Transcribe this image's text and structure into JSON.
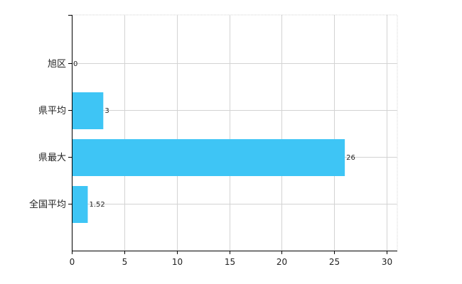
{
  "chart_data": {
    "type": "bar",
    "orientation": "horizontal",
    "categories": [
      "旭区",
      "県平均",
      "県最大",
      "全国平均"
    ],
    "values": [
      0,
      3,
      26,
      1.52
    ],
    "data_labels": [
      "0",
      "3",
      "26",
      "1.52"
    ],
    "xlim": [
      0,
      31
    ],
    "xticks": [
      0,
      5,
      10,
      15,
      20,
      25,
      30
    ],
    "xtick_labels": [
      "0",
      "5",
      "10",
      "15",
      "20",
      "25",
      "30"
    ],
    "title": "",
    "xlabel": "",
    "ylabel": "",
    "grid": true,
    "legend": "none",
    "colors": {
      "bar": "#3ec5f5",
      "grid": "#d3d3d3",
      "axis": "#000000"
    }
  }
}
